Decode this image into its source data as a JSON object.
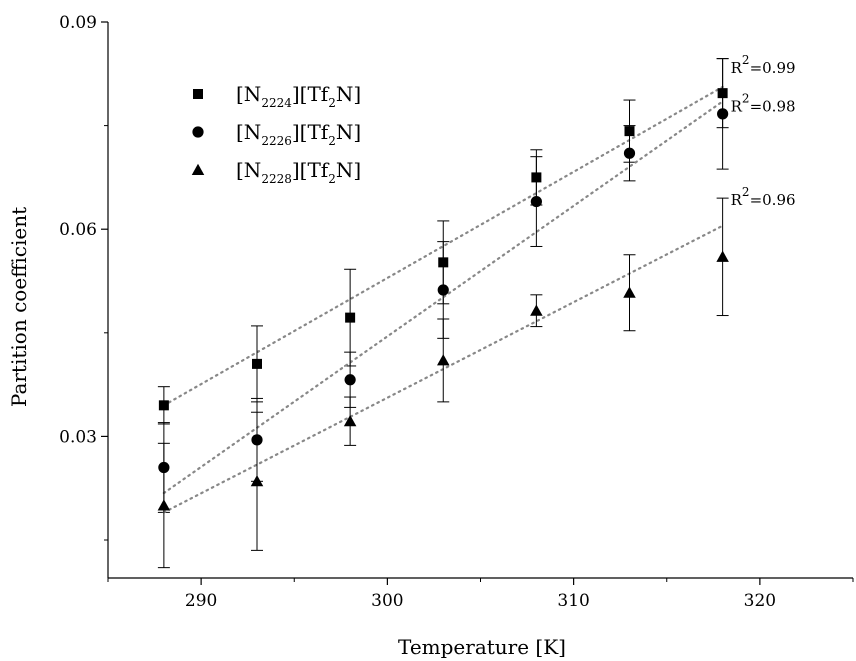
{
  "chart_data": {
    "type": "scatter",
    "xlabel": "Temperature [K]",
    "ylabel": "Partition coefficient",
    "xlim": [
      285,
      325
    ],
    "ylim": [
      0.0095,
      0.09
    ],
    "xticks": [
      290,
      300,
      310,
      320
    ],
    "yticks": [
      0.03,
      0.06,
      0.09
    ],
    "ytick_labels": [
      "0.03",
      "0.06",
      "0.09"
    ],
    "legend_position": "top-left",
    "grid": false,
    "series": [
      {
        "name_main": "[N",
        "name_sub": "2224",
        "name_mid": "][Tf",
        "name_sub2": "2",
        "name_end": "N]",
        "marker": "square",
        "x": [
          288,
          293,
          298,
          303,
          308,
          313,
          318
        ],
        "y": [
          0.0345,
          0.0405,
          0.0472,
          0.0552,
          0.0675,
          0.0742,
          0.0797
        ],
        "err": [
          0.0027,
          0.0055,
          0.007,
          0.006,
          0.004,
          0.0045,
          0.005
        ],
        "fit": [
          0.0345,
          0.0806
        ],
        "r2_label": "R",
        "r2_sup": "2",
        "r2_value": "=0.99"
      },
      {
        "name_main": "[N",
        "name_sub": "2226",
        "name_mid": "][Tf",
        "name_sub2": "2",
        "name_end": "N]",
        "marker": "circle",
        "x": [
          288,
          293,
          298,
          303,
          308,
          313,
          318
        ],
        "y": [
          0.0255,
          0.0295,
          0.0382,
          0.0512,
          0.064,
          0.071,
          0.0767
        ],
        "err": [
          0.0065,
          0.006,
          0.004,
          0.007,
          0.0065,
          0.004,
          0.008
        ],
        "fit": [
          0.0218,
          0.0785
        ],
        "r2_label": "R",
        "r2_sup": "2",
        "r2_value": "=0.98"
      },
      {
        "name_main": "[N",
        "name_sub": "2228",
        "name_mid": "][Tf",
        "name_sub2": "2",
        "name_end": "N]",
        "marker": "triangle",
        "x": [
          288,
          293,
          298,
          303,
          308,
          313,
          318
        ],
        "y": [
          0.02,
          0.0235,
          0.0322,
          0.041,
          0.0482,
          0.0508,
          0.056
        ],
        "err": [
          0.009,
          0.01,
          0.0035,
          0.006,
          0.0023,
          0.0055,
          0.0085
        ],
        "fit": [
          0.019,
          0.0605
        ],
        "r2_label": "R",
        "r2_sup": "2",
        "r2_value": "=0.96"
      }
    ]
  }
}
